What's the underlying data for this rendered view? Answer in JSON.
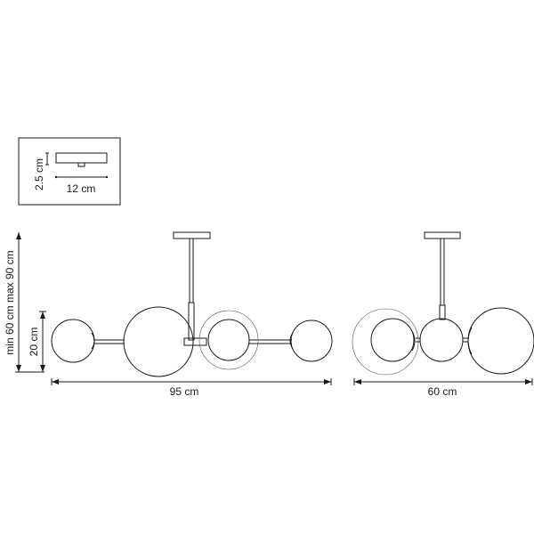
{
  "inset": {
    "height_label": "2.5 cm",
    "width_label": "12 cm"
  },
  "front_view": {
    "height_label": "min 60 cm max 90 cm",
    "globe_label": "20 cm",
    "width_label": "95 cm"
  },
  "side_view": {
    "width_label": "60 cm"
  },
  "colors": {
    "line": "#1a1a1a",
    "background": "#ffffff"
  }
}
